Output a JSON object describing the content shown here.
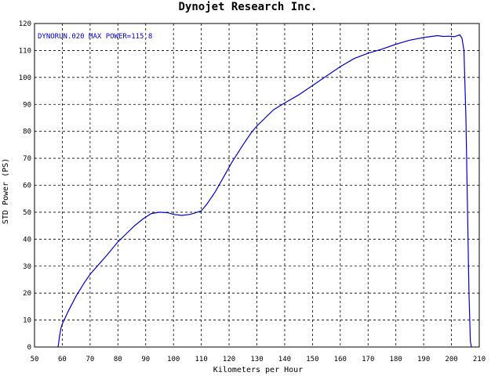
{
  "chart_data": {
    "type": "line",
    "title": "Dynojet  Research  Inc.",
    "annotation": "DYNORUN.020  MAX POWER=115.8",
    "xlabel": "Kilometers per Hour",
    "ylabel": "STD Power (PS)",
    "xlim": [
      50,
      210
    ],
    "ylim": [
      0,
      120
    ],
    "x_ticks": [
      50,
      60,
      70,
      80,
      90,
      100,
      110,
      120,
      130,
      140,
      150,
      160,
      170,
      180,
      190,
      200,
      210
    ],
    "y_ticks": [
      0,
      10,
      20,
      30,
      40,
      50,
      60,
      70,
      80,
      90,
      100,
      110,
      120
    ],
    "grid": true,
    "colors": {
      "line": "#0000cc",
      "annotation": "#0000cc",
      "grid": "#000000",
      "axes": "#000000"
    },
    "series": [
      {
        "x": [
          58.5,
          59.0,
          59.5,
          60.0,
          62,
          65,
          68,
          70,
          73,
          76,
          80,
          83,
          86,
          89,
          92,
          95,
          98,
          100,
          103,
          106,
          108,
          110,
          112,
          115,
          118,
          121,
          125,
          128,
          130,
          133,
          136,
          140,
          145,
          150,
          155,
          160,
          165,
          170,
          175,
          180,
          185,
          190,
          195,
          197,
          199,
          201,
          203,
          203.8,
          204.5,
          205.2,
          205.8,
          206.3,
          206.8,
          207.2
        ],
        "y": [
          0,
          4,
          7,
          8.5,
          13,
          19,
          24,
          27,
          30.5,
          34,
          39,
          42,
          45,
          47.5,
          49.5,
          50,
          49.8,
          49.2,
          48.8,
          49.2,
          49.8,
          50.5,
          53,
          57.5,
          63,
          68.5,
          75,
          79.5,
          82,
          85,
          88,
          90.5,
          93.5,
          97,
          100.5,
          104,
          107,
          109,
          110.5,
          112.3,
          113.8,
          114.8,
          115.5,
          115.2,
          115.3,
          115.1,
          115.8,
          114.5,
          110,
          85,
          50,
          20,
          2,
          0
        ]
      }
    ]
  }
}
